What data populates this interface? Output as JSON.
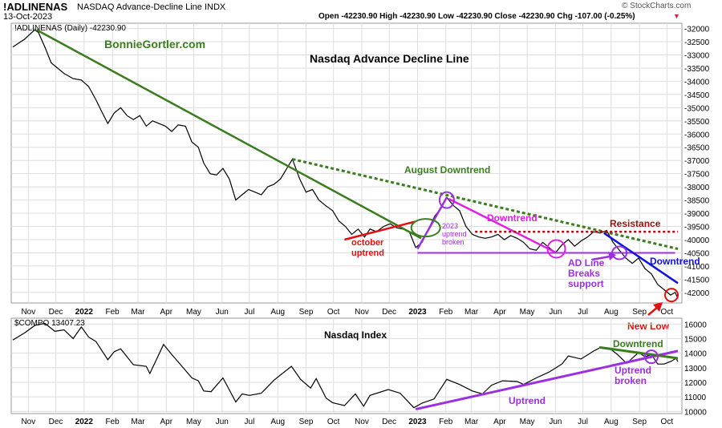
{
  "header": {
    "symbol": "!ADLINENAS",
    "name": "NASDAQ Advance-Decline Line INDX",
    "date": "13-Oct-2023",
    "ohlc": "Open -42230.90  High -42230.90  Low -42230.90  Close -42230.90  Chg -107.00 (-0.25%)",
    "change_arrow": "▼",
    "brand": "© StockCharts.com"
  },
  "colors": {
    "price": "#000000",
    "green": "#3a7d1e",
    "purple": "#9b30e0",
    "magenta": "#e020e0",
    "red": "#e01010",
    "blue": "#1010e0",
    "maroon": "#a01010",
    "grid": "#dddddd"
  },
  "chart_data": [
    {
      "type": "line",
      "title": "Nasdaq Advance Decline Line",
      "legend": "!ADLINENAS (Daily) -42230.90",
      "watermark": "BonnieGortler.com",
      "ylim": [
        -42400,
        -31800
      ],
      "y_ticks": [
        -32000,
        -32500,
        -33000,
        -33500,
        -34000,
        -34500,
        -35000,
        -35500,
        -36000,
        -36500,
        -37000,
        -37500,
        -38000,
        -38500,
        -39000,
        -39500,
        -40000,
        -40500,
        -41000,
        -41500,
        -42000
      ],
      "x_ticks": [
        "Nov",
        "Dec",
        "2022",
        "Feb",
        "Mar",
        "Apr",
        "May",
        "Jun",
        "Jul",
        "Aug",
        "Sep",
        "Oct",
        "Nov",
        "Dec",
        "2023",
        "Feb",
        "Mar",
        "Apr",
        "May",
        "Jun",
        "Jul",
        "Aug",
        "Sep",
        "Oct"
      ],
      "x_range": [
        "2021-10-15",
        "2023-10-13"
      ],
      "series": [
        {
          "values": [
            [
              "2021-10-15",
              -32700
            ],
            [
              "2021-10-28",
              -32400
            ],
            [
              "2021-11-08",
              -32050
            ],
            [
              "2021-11-12",
              -32150
            ],
            [
              "2021-11-19",
              -32700
            ],
            [
              "2021-11-26",
              -33300
            ],
            [
              "2021-12-03",
              -33500
            ],
            [
              "2021-12-10",
              -33700
            ],
            [
              "2021-12-20",
              -33900
            ],
            [
              "2021-12-29",
              -33950
            ],
            [
              "2022-01-06",
              -34200
            ],
            [
              "2022-01-14",
              -34700
            ],
            [
              "2022-01-21",
              -35200
            ],
            [
              "2022-01-27",
              -35600
            ],
            [
              "2022-02-03",
              -35200
            ],
            [
              "2022-02-10",
              -35000
            ],
            [
              "2022-02-17",
              -35300
            ],
            [
              "2022-02-24",
              -35450
            ],
            [
              "2022-03-03",
              -35300
            ],
            [
              "2022-03-10",
              -35700
            ],
            [
              "2022-03-17",
              -35500
            ],
            [
              "2022-03-24",
              -35600
            ],
            [
              "2022-03-31",
              -35700
            ],
            [
              "2022-04-07",
              -35900
            ],
            [
              "2022-04-14",
              -35650
            ],
            [
              "2022-04-22",
              -35700
            ],
            [
              "2022-04-29",
              -36300
            ],
            [
              "2022-05-06",
              -36500
            ],
            [
              "2022-05-12",
              -37100
            ],
            [
              "2022-05-19",
              -37500
            ],
            [
              "2022-05-26",
              -37550
            ],
            [
              "2022-06-02",
              -37300
            ],
            [
              "2022-06-09",
              -37700
            ],
            [
              "2022-06-16",
              -38500
            ],
            [
              "2022-06-23",
              -38300
            ],
            [
              "2022-06-30",
              -38100
            ],
            [
              "2022-07-07",
              -38200
            ],
            [
              "2022-07-14",
              -38300
            ],
            [
              "2022-07-21",
              -38000
            ],
            [
              "2022-07-28",
              -37900
            ],
            [
              "2022-08-04",
              -37700
            ],
            [
              "2022-08-11",
              -37300
            ],
            [
              "2022-08-17",
              -36950
            ],
            [
              "2022-08-25",
              -37700
            ],
            [
              "2022-09-01",
              -38200
            ],
            [
              "2022-09-08",
              -38100
            ],
            [
              "2022-09-15",
              -38500
            ],
            [
              "2022-09-22",
              -38700
            ],
            [
              "2022-09-30",
              -38900
            ],
            [
              "2022-10-07",
              -39300
            ],
            [
              "2022-10-14",
              -39500
            ],
            [
              "2022-10-21",
              -39800
            ],
            [
              "2022-10-28",
              -39600
            ],
            [
              "2022-11-04",
              -39900
            ],
            [
              "2022-11-10",
              -39600
            ],
            [
              "2022-11-17",
              -39700
            ],
            [
              "2022-11-25",
              -39500
            ],
            [
              "2022-12-02",
              -39400
            ],
            [
              "2022-12-09",
              -39550
            ],
            [
              "2022-12-16",
              -39600
            ],
            [
              "2022-12-23",
              -39700
            ],
            [
              "2022-12-30",
              -40300
            ],
            [
              "2023-01-06",
              -40100
            ],
            [
              "2023-01-13",
              -39600
            ],
            [
              "2023-01-20",
              -39100
            ],
            [
              "2023-01-27",
              -38800
            ],
            [
              "2023-02-02",
              -38400
            ],
            [
              "2023-02-09",
              -38700
            ],
            [
              "2023-02-16",
              -38900
            ],
            [
              "2023-02-23",
              -39500
            ],
            [
              "2023-03-02",
              -39800
            ],
            [
              "2023-03-09",
              -39900
            ],
            [
              "2023-03-16",
              -39950
            ],
            [
              "2023-03-23",
              -39900
            ],
            [
              "2023-03-30",
              -39800
            ],
            [
              "2023-04-06",
              -40000
            ],
            [
              "2023-04-13",
              -39850
            ],
            [
              "2023-04-20",
              -39950
            ],
            [
              "2023-04-27",
              -40100
            ],
            [
              "2023-05-04",
              -40350
            ],
            [
              "2023-05-11",
              -40400
            ],
            [
              "2023-05-18",
              -40100
            ],
            [
              "2023-05-25",
              -40300
            ],
            [
              "2023-06-01",
              -40500
            ],
            [
              "2023-06-08",
              -40200
            ],
            [
              "2023-06-15",
              -40000
            ],
            [
              "2023-06-22",
              -40250
            ],
            [
              "2023-06-29",
              -40050
            ],
            [
              "2023-07-06",
              -39900
            ],
            [
              "2023-07-13",
              -39700
            ],
            [
              "2023-07-20",
              -39750
            ],
            [
              "2023-07-27",
              -39650
            ],
            [
              "2023-08-03",
              -40100
            ],
            [
              "2023-08-10",
              -40400
            ],
            [
              "2023-08-17",
              -40700
            ],
            [
              "2023-08-24",
              -40900
            ],
            [
              "2023-08-31",
              -40700
            ],
            [
              "2023-09-07",
              -41100
            ],
            [
              "2023-09-14",
              -41300
            ],
            [
              "2023-09-21",
              -41700
            ],
            [
              "2023-09-28",
              -41900
            ],
            [
              "2023-10-05",
              -42100
            ],
            [
              "2023-10-10",
              -42000
            ],
            [
              "2023-10-13",
              -42230
            ]
          ]
        }
      ],
      "annotations": {
        "august_downtrend": "August Downtrend",
        "october_uptrend": "october\nuptrend",
        "uptrend_broken_2023": "2023\nuptrend\nbroken",
        "downtrend": "Downtrend",
        "resistance": "Resistance",
        "ad_line_breaks": "AD Line\nBreaks\nsupport",
        "downtrend_blue": "Downtrend",
        "new_low": "New Low"
      }
    },
    {
      "type": "line",
      "title": "Nasdaq Index",
      "legend": "$COMPO 13407.23",
      "ylim": [
        9850,
        16400
      ],
      "y_ticks": [
        10000,
        11000,
        12000,
        13000,
        14000,
        15000,
        16000
      ],
      "x_ticks": [
        "Nov",
        "Dec",
        "2022",
        "Feb",
        "Mar",
        "Apr",
        "May",
        "Jun",
        "Jul",
        "Aug",
        "Sep",
        "Oct",
        "Nov",
        "Dec",
        "2023",
        "Feb",
        "Mar",
        "Apr",
        "May",
        "Jun",
        "Jul",
        "Aug",
        "Sep",
        "Oct"
      ],
      "x_range": [
        "2021-10-15",
        "2023-10-13"
      ],
      "series": [
        {
          "values": [
            [
              "2021-10-15",
              14900
            ],
            [
              "2021-10-28",
              15400
            ],
            [
              "2021-11-08",
              15900
            ],
            [
              "2021-11-19",
              16050
            ],
            [
              "2021-11-30",
              15500
            ],
            [
              "2021-12-10",
              15600
            ],
            [
              "2021-12-20",
              15000
            ],
            [
              "2021-12-29",
              15800
            ],
            [
              "2022-01-06",
              15100
            ],
            [
              "2022-01-14",
              14800
            ],
            [
              "2022-01-27",
              13550
            ],
            [
              "2022-02-03",
              14100
            ],
            [
              "2022-02-10",
              14300
            ],
            [
              "2022-02-24",
              13200
            ],
            [
              "2022-03-10",
              13100
            ],
            [
              "2022-03-14",
              12600
            ],
            [
              "2022-03-29",
              14600
            ],
            [
              "2022-04-07",
              13900
            ],
            [
              "2022-04-14",
              13400
            ],
            [
              "2022-04-29",
              12300
            ],
            [
              "2022-05-06",
              12100
            ],
            [
              "2022-05-12",
              11400
            ],
            [
              "2022-05-20",
              11350
            ],
            [
              "2022-06-02",
              12300
            ],
            [
              "2022-06-16",
              10650
            ],
            [
              "2022-06-23",
              11200
            ],
            [
              "2022-07-01",
              11100
            ],
            [
              "2022-07-14",
              11250
            ],
            [
              "2022-07-28",
              12150
            ],
            [
              "2022-08-16",
              13100
            ],
            [
              "2022-08-26",
              12200
            ],
            [
              "2022-09-06",
              11600
            ],
            [
              "2022-09-12",
              12250
            ],
            [
              "2022-09-23",
              10900
            ],
            [
              "2022-09-30",
              10600
            ],
            [
              "2022-10-13",
              10400
            ],
            [
              "2022-10-25",
              11200
            ],
            [
              "2022-11-03",
              10350
            ],
            [
              "2022-11-10",
              11100
            ],
            [
              "2022-11-30",
              11500
            ],
            [
              "2022-12-13",
              11250
            ],
            [
              "2022-12-28",
              10250
            ],
            [
              "2023-01-06",
              10570
            ],
            [
              "2023-01-19",
              10850
            ],
            [
              "2023-02-02",
              12200
            ],
            [
              "2023-02-16",
              11850
            ],
            [
              "2023-03-02",
              11400
            ],
            [
              "2023-03-13",
              11200
            ],
            [
              "2023-03-23",
              11800
            ],
            [
              "2023-04-04",
              12100
            ],
            [
              "2023-04-20",
              12050
            ],
            [
              "2023-04-27",
              11850
            ],
            [
              "2023-05-11",
              12300
            ],
            [
              "2023-05-25",
              12700
            ],
            [
              "2023-06-08",
              13250
            ],
            [
              "2023-06-15",
              13800
            ],
            [
              "2023-06-29",
              13600
            ],
            [
              "2023-07-13",
              14150
            ],
            [
              "2023-07-19",
              14350
            ],
            [
              "2023-07-31",
              14300
            ],
            [
              "2023-08-08",
              13900
            ],
            [
              "2023-08-18",
              13300
            ],
            [
              "2023-08-31",
              14050
            ],
            [
              "2023-09-07",
              13750
            ],
            [
              "2023-09-14",
              13900
            ],
            [
              "2023-09-21",
              13250
            ],
            [
              "2023-09-28",
              13250
            ],
            [
              "2023-10-06",
              13450
            ],
            [
              "2023-10-11",
              13650
            ],
            [
              "2023-10-13",
              13407
            ]
          ]
        }
      ],
      "annotations": {
        "uptrend": "Uptrend",
        "downtrend": "Downtrend",
        "uptrend_broken": "Uptrend\nbroken"
      }
    }
  ]
}
